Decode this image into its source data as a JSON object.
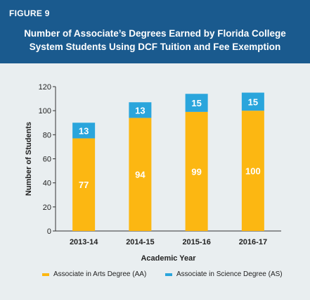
{
  "header": {
    "figure_label": "FIGURE 9",
    "title_line1": "Number of Associate’s Degrees Earned by Florida College",
    "title_line2": "System Students Using DCF Tuition and Fee Exemption"
  },
  "colors": {
    "header_bg": "#1a5a8e",
    "aa": "#fcb712",
    "as": "#2aa5dc"
  },
  "chart_data": {
    "type": "bar",
    "stacked": true,
    "title": "Number of Associate’s Degrees Earned by Florida College System Students Using DCF Tuition and Fee Exemption",
    "categories": [
      "2013-14",
      "2014-15",
      "2015-16",
      "2016-17"
    ],
    "series": [
      {
        "name": "Associate in Arts Degree (AA)",
        "values": [
          77,
          94,
          99,
          100
        ]
      },
      {
        "name": "Associate in Science Degree (AS)",
        "values": [
          13,
          13,
          15,
          15
        ]
      }
    ],
    "xlabel": "Academic Year",
    "ylabel": "Number of Students",
    "ylim": [
      0,
      120
    ],
    "yticks": [
      0,
      20,
      40,
      60,
      80,
      100,
      120
    ],
    "grid": false,
    "legend_position": "bottom"
  }
}
